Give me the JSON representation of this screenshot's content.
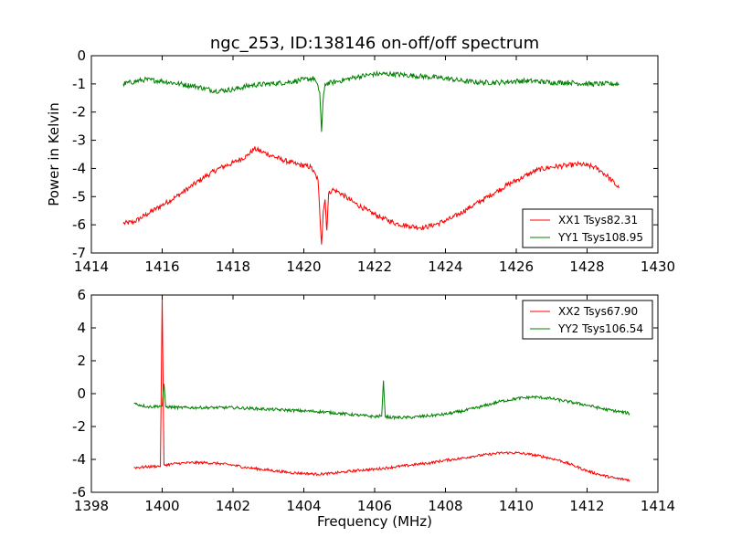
{
  "figure": {
    "title": "ngc_253, ID:138146 on-off/off spectrum",
    "xlabel": "Frequency (MHz)"
  },
  "chart_data": [
    {
      "type": "line",
      "title": "ngc_253, ID:138146 on-off/off spectrum",
      "xlabel": "",
      "ylabel": "Power in Kelvin",
      "xlim": [
        1414,
        1430
      ],
      "ylim": [
        -7,
        0
      ],
      "xticks": [
        1414,
        1416,
        1418,
        1420,
        1422,
        1424,
        1426,
        1428,
        1430
      ],
      "yticks": [
        0,
        -1,
        -2,
        -3,
        -4,
        -5,
        -6,
        -7
      ],
      "legend_position": "lower-right",
      "grid": false,
      "series": [
        {
          "name": "XX1 Tsys82.31",
          "color": "#ff0000",
          "noise": 0.09,
          "x": [
            1414.9,
            1415.2,
            1415.6,
            1416.0,
            1416.4,
            1416.8,
            1417.2,
            1417.6,
            1418.0,
            1418.4,
            1418.6,
            1418.8,
            1419.0,
            1419.4,
            1419.8,
            1420.2,
            1420.4,
            1420.5,
            1420.55,
            1420.6,
            1420.65,
            1420.7,
            1420.8,
            1421.0,
            1421.4,
            1421.8,
            1422.2,
            1422.6,
            1423.0,
            1423.4,
            1423.8,
            1424.2,
            1424.6,
            1425.0,
            1425.4,
            1425.8,
            1426.2,
            1426.6,
            1427.0,
            1427.4,
            1427.8,
            1428.0,
            1428.2,
            1428.4,
            1428.6,
            1428.9
          ],
          "y": [
            -5.95,
            -5.9,
            -5.6,
            -5.3,
            -5.0,
            -4.65,
            -4.3,
            -4.0,
            -3.8,
            -3.55,
            -3.3,
            -3.4,
            -3.5,
            -3.7,
            -3.85,
            -3.95,
            -4.4,
            -6.7,
            -5.5,
            -5.1,
            -6.2,
            -4.9,
            -4.75,
            -4.85,
            -5.2,
            -5.5,
            -5.75,
            -5.95,
            -6.05,
            -6.1,
            -5.95,
            -5.75,
            -5.45,
            -5.15,
            -4.85,
            -4.55,
            -4.3,
            -4.05,
            -3.95,
            -3.9,
            -3.85,
            -3.9,
            -3.95,
            -4.1,
            -4.3,
            -4.7
          ]
        },
        {
          "name": "YY1 Tsys108.95",
          "color": "#008000",
          "noise": 0.09,
          "x": [
            1414.9,
            1415.5,
            1416.0,
            1416.5,
            1417.0,
            1417.5,
            1418.0,
            1418.5,
            1419.0,
            1419.5,
            1420.0,
            1420.3,
            1420.45,
            1420.5,
            1420.55,
            1420.6,
            1420.8,
            1421.0,
            1421.5,
            1422.0,
            1422.5,
            1423.0,
            1423.5,
            1424.0,
            1424.5,
            1425.0,
            1425.5,
            1426.0,
            1426.5,
            1427.0,
            1427.5,
            1428.0,
            1428.5,
            1428.9
          ],
          "y": [
            -1.0,
            -0.85,
            -0.9,
            -1.0,
            -1.1,
            -1.25,
            -1.2,
            -1.05,
            -1.0,
            -0.95,
            -0.85,
            -0.8,
            -1.3,
            -2.7,
            -1.5,
            -1.0,
            -0.95,
            -0.9,
            -0.75,
            -0.65,
            -0.65,
            -0.7,
            -0.75,
            -0.8,
            -0.9,
            -0.95,
            -0.95,
            -0.9,
            -0.9,
            -0.95,
            -0.95,
            -1.0,
            -1.0,
            -1.0
          ]
        }
      ]
    },
    {
      "type": "line",
      "title": "",
      "xlabel": "Frequency (MHz)",
      "ylabel": "",
      "xlim": [
        1398,
        1414
      ],
      "ylim": [
        -6,
        6
      ],
      "xticks": [
        1398,
        1400,
        1402,
        1404,
        1406,
        1408,
        1410,
        1412,
        1414
      ],
      "yticks": [
        6,
        4,
        2,
        0,
        -2,
        -4,
        -6
      ],
      "legend_position": "upper-right",
      "grid": false,
      "series": [
        {
          "name": "XX2 Tsys67.90",
          "color": "#ff0000",
          "noise": 0.08,
          "x": [
            1399.2,
            1399.6,
            1399.95,
            1400.0,
            1400.05,
            1400.4,
            1400.8,
            1401.2,
            1401.6,
            1402.0,
            1402.4,
            1402.8,
            1403.2,
            1403.6,
            1404.0,
            1404.4,
            1404.8,
            1405.2,
            1405.6,
            1406.0,
            1406.4,
            1406.8,
            1407.2,
            1407.6,
            1408.0,
            1408.4,
            1408.8,
            1409.2,
            1409.6,
            1410.0,
            1410.4,
            1410.8,
            1411.2,
            1411.6,
            1412.0,
            1412.4,
            1412.8,
            1413.2
          ],
          "y": [
            -4.5,
            -4.45,
            -4.4,
            6.0,
            -4.35,
            -4.25,
            -4.2,
            -4.2,
            -4.25,
            -4.35,
            -4.5,
            -4.6,
            -4.7,
            -4.8,
            -4.85,
            -4.9,
            -4.85,
            -4.75,
            -4.65,
            -4.6,
            -4.5,
            -4.4,
            -4.3,
            -4.2,
            -4.05,
            -3.95,
            -3.8,
            -3.7,
            -3.6,
            -3.6,
            -3.7,
            -3.85,
            -4.05,
            -4.35,
            -4.7,
            -4.95,
            -5.15,
            -5.25
          ]
        },
        {
          "name": "YY2 Tsys106.54",
          "color": "#008000",
          "noise": 0.09,
          "x": [
            1399.2,
            1399.6,
            1400.0,
            1400.05,
            1400.1,
            1400.5,
            1401.0,
            1401.5,
            1402.0,
            1402.5,
            1403.0,
            1403.5,
            1404.0,
            1404.5,
            1405.0,
            1405.5,
            1406.0,
            1406.2,
            1406.25,
            1406.3,
            1406.5,
            1407.0,
            1407.5,
            1408.0,
            1408.5,
            1409.0,
            1409.5,
            1410.0,
            1410.5,
            1411.0,
            1411.5,
            1412.0,
            1412.5,
            1413.2
          ],
          "y": [
            -0.6,
            -0.8,
            -0.75,
            0.6,
            -0.8,
            -0.85,
            -0.85,
            -0.85,
            -0.85,
            -0.9,
            -0.95,
            -1.0,
            -1.05,
            -1.1,
            -1.2,
            -1.3,
            -1.4,
            -1.35,
            0.8,
            -1.4,
            -1.45,
            -1.45,
            -1.35,
            -1.25,
            -1.05,
            -0.8,
            -0.5,
            -0.3,
            -0.2,
            -0.3,
            -0.5,
            -0.7,
            -0.95,
            -1.2
          ]
        }
      ]
    }
  ]
}
